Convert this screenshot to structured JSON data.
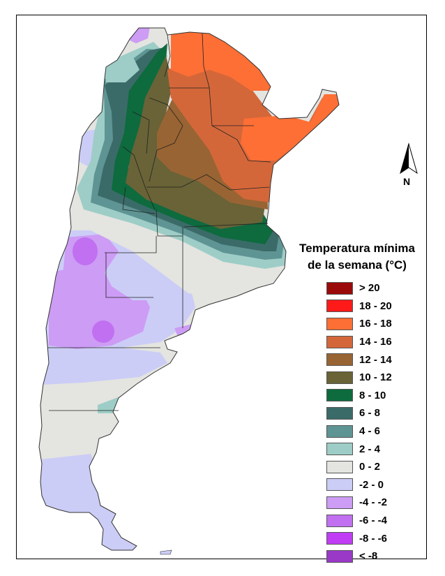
{
  "map": {
    "legend": {
      "title_line1": "Temperatura mínima",
      "title_line2": "de la semana (°C)",
      "classes": [
        {
          "label": "> 20",
          "color": "#9b0a0a"
        },
        {
          "label": "18 - 20",
          "color": "#ff1a1a"
        },
        {
          "label": "16 - 18",
          "color": "#fd6f35"
        },
        {
          "label": "14 - 16",
          "color": "#d4673a"
        },
        {
          "label": "12 - 14",
          "color": "#996433"
        },
        {
          "label": "10 - 12",
          "color": "#696337"
        },
        {
          "label": "8 - 10",
          "color": "#0d6b3e"
        },
        {
          "label": "6 - 8",
          "color": "#3b6b68"
        },
        {
          "label": "4 - 6",
          "color": "#5f9494"
        },
        {
          "label": "2 - 4",
          "color": "#9dcdc6"
        },
        {
          "label": "0 - 2",
          "color": "#e4e4e0"
        },
        {
          "label": "-2 - 0",
          "color": "#cbcdf6"
        },
        {
          "label": "-4 - -2",
          "color": "#cd9cf5"
        },
        {
          "label": "-6 - -4",
          "color": "#c070f0"
        },
        {
          "label": "-8 - -6",
          "color": "#c13df5"
        },
        {
          "label": "< -8",
          "color": "#9a38c8"
        }
      ]
    },
    "north_arrow": {
      "label": "N",
      "icon": "north-arrow-icon"
    }
  }
}
